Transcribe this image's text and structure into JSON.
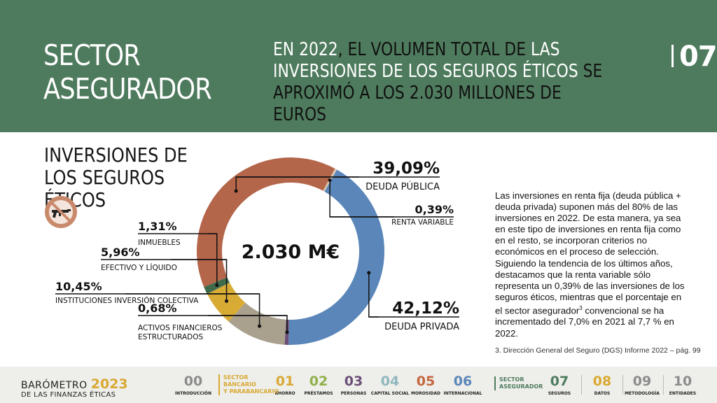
{
  "header": {
    "section_line1": "SECTOR",
    "section_line2": "ASEGURADOR",
    "headline_part1": "EN 2022",
    "headline_part2": ", EL VOLUMEN TOTAL DE ",
    "headline_part3": "LAS INVERSIONES DE LOS SEGUROS ÉTICOS",
    "headline_part4": " SE APROXIMÓ A LOS 2.030 MILLONES DE EUROS",
    "page_number": "07",
    "background_color": "#4e7b5d"
  },
  "section": {
    "title_line1": "INVERSIONES DE",
    "title_line2": "LOS SEGUROS ÉTICOS",
    "icon": "no-weapons-icon"
  },
  "chart_data": {
    "type": "pie",
    "variant": "donut",
    "center_label": "2.030 M€",
    "unit": "%",
    "slices": [
      {
        "label": "DEUDA PÚBLICA",
        "value": 39.09,
        "value_text": "39,09%",
        "color": "#b4664a"
      },
      {
        "label": "RENTA VARIABLE",
        "value": 0.39,
        "value_text": "0,39%",
        "color": "#d9c6ae"
      },
      {
        "label": "DEUDA PRIVADA",
        "value": 42.12,
        "value_text": "42,12%",
        "color": "#5b86b9"
      },
      {
        "label": "ACTIVOS FINANCIEROS ESTRUCTURADOS",
        "label_line1": "ACTIVOS FINANCIEROS",
        "label_line2": "ESTRUCTURADOS",
        "value": 0.68,
        "value_text": "0,68%",
        "color": "#6b4f77"
      },
      {
        "label": "INSTITUCIONES INVERSIÓN COLECTIVA",
        "value": 10.45,
        "value_text": "10,45%",
        "color": "#a9a08e"
      },
      {
        "label": "EFECTIVO Y LÍQUIDO",
        "value": 5.96,
        "value_text": "5,96%",
        "color": "#d8ab35"
      },
      {
        "label": "INMUEBLES",
        "value": 1.31,
        "value_text": "1,31%",
        "color": "#3f6b4b"
      }
    ]
  },
  "description": {
    "text_before_sup": "Las inversiones en renta fija (deuda pública + deuda privada) suponen más del 80% de las inversiones en 2022. De esta manera, ya sea en este tipo de inversiones en renta fija como en el resto, se incorporan criterios no económicos en el proceso de selección. Siguiendo la tendencia de los últimos años, destacamos que la renta variable sólo representa un 0,39% de las inversiones de los seguros éticos, mientras que el porcentaje en el sector asegurador",
    "sup": "3",
    "text_after_sup": " convencional se ha incrementado del 7,0% en 2021 al 7,7 % en 2022.",
    "footnote": "3. Dirección General del Seguro (DGS) Informe 2022 – pág. 99"
  },
  "footer": {
    "brand_line1": "BARÓMETRO",
    "brand_year": "2023",
    "brand_line2": "DE LAS FINANZAS ÉTICAS",
    "group_bancario_line1": "SECTOR",
    "group_bancario_line2": "BANCARIO",
    "group_bancario_line3": "Y PARABANCARIO",
    "group_asegurador_line1": "SECTOR",
    "group_asegurador_line2": "ASEGURADOR",
    "nav": [
      {
        "num": "00",
        "label": "INTRODUCCIÓN",
        "color": "#8c8c8c"
      },
      {
        "num": "01",
        "label": "AHORRO",
        "color": "#d9a933"
      },
      {
        "num": "02",
        "label": "PRÉSTAMOS",
        "color": "#8fb04a"
      },
      {
        "num": "03",
        "label": "PERSONAS",
        "color": "#6b4f77"
      },
      {
        "num": "04",
        "label": "CAPITAL SOCIAL",
        "color": "#8fb7be"
      },
      {
        "num": "05",
        "label": "MOROSIDAD",
        "color": "#c4673f"
      },
      {
        "num": "06",
        "label": "INTERNACIONAL",
        "color": "#5b86b9"
      },
      {
        "num": "07",
        "label": "SEGUROS",
        "color": "#4e7b5d"
      },
      {
        "num": "08",
        "label": "DATOS",
        "color": "#d9a933"
      },
      {
        "num": "09",
        "label": "METODOLOGÍA",
        "color": "#8c8c8c"
      },
      {
        "num": "10",
        "label": "ENTIDADES",
        "color": "#8c8c8c"
      }
    ]
  }
}
